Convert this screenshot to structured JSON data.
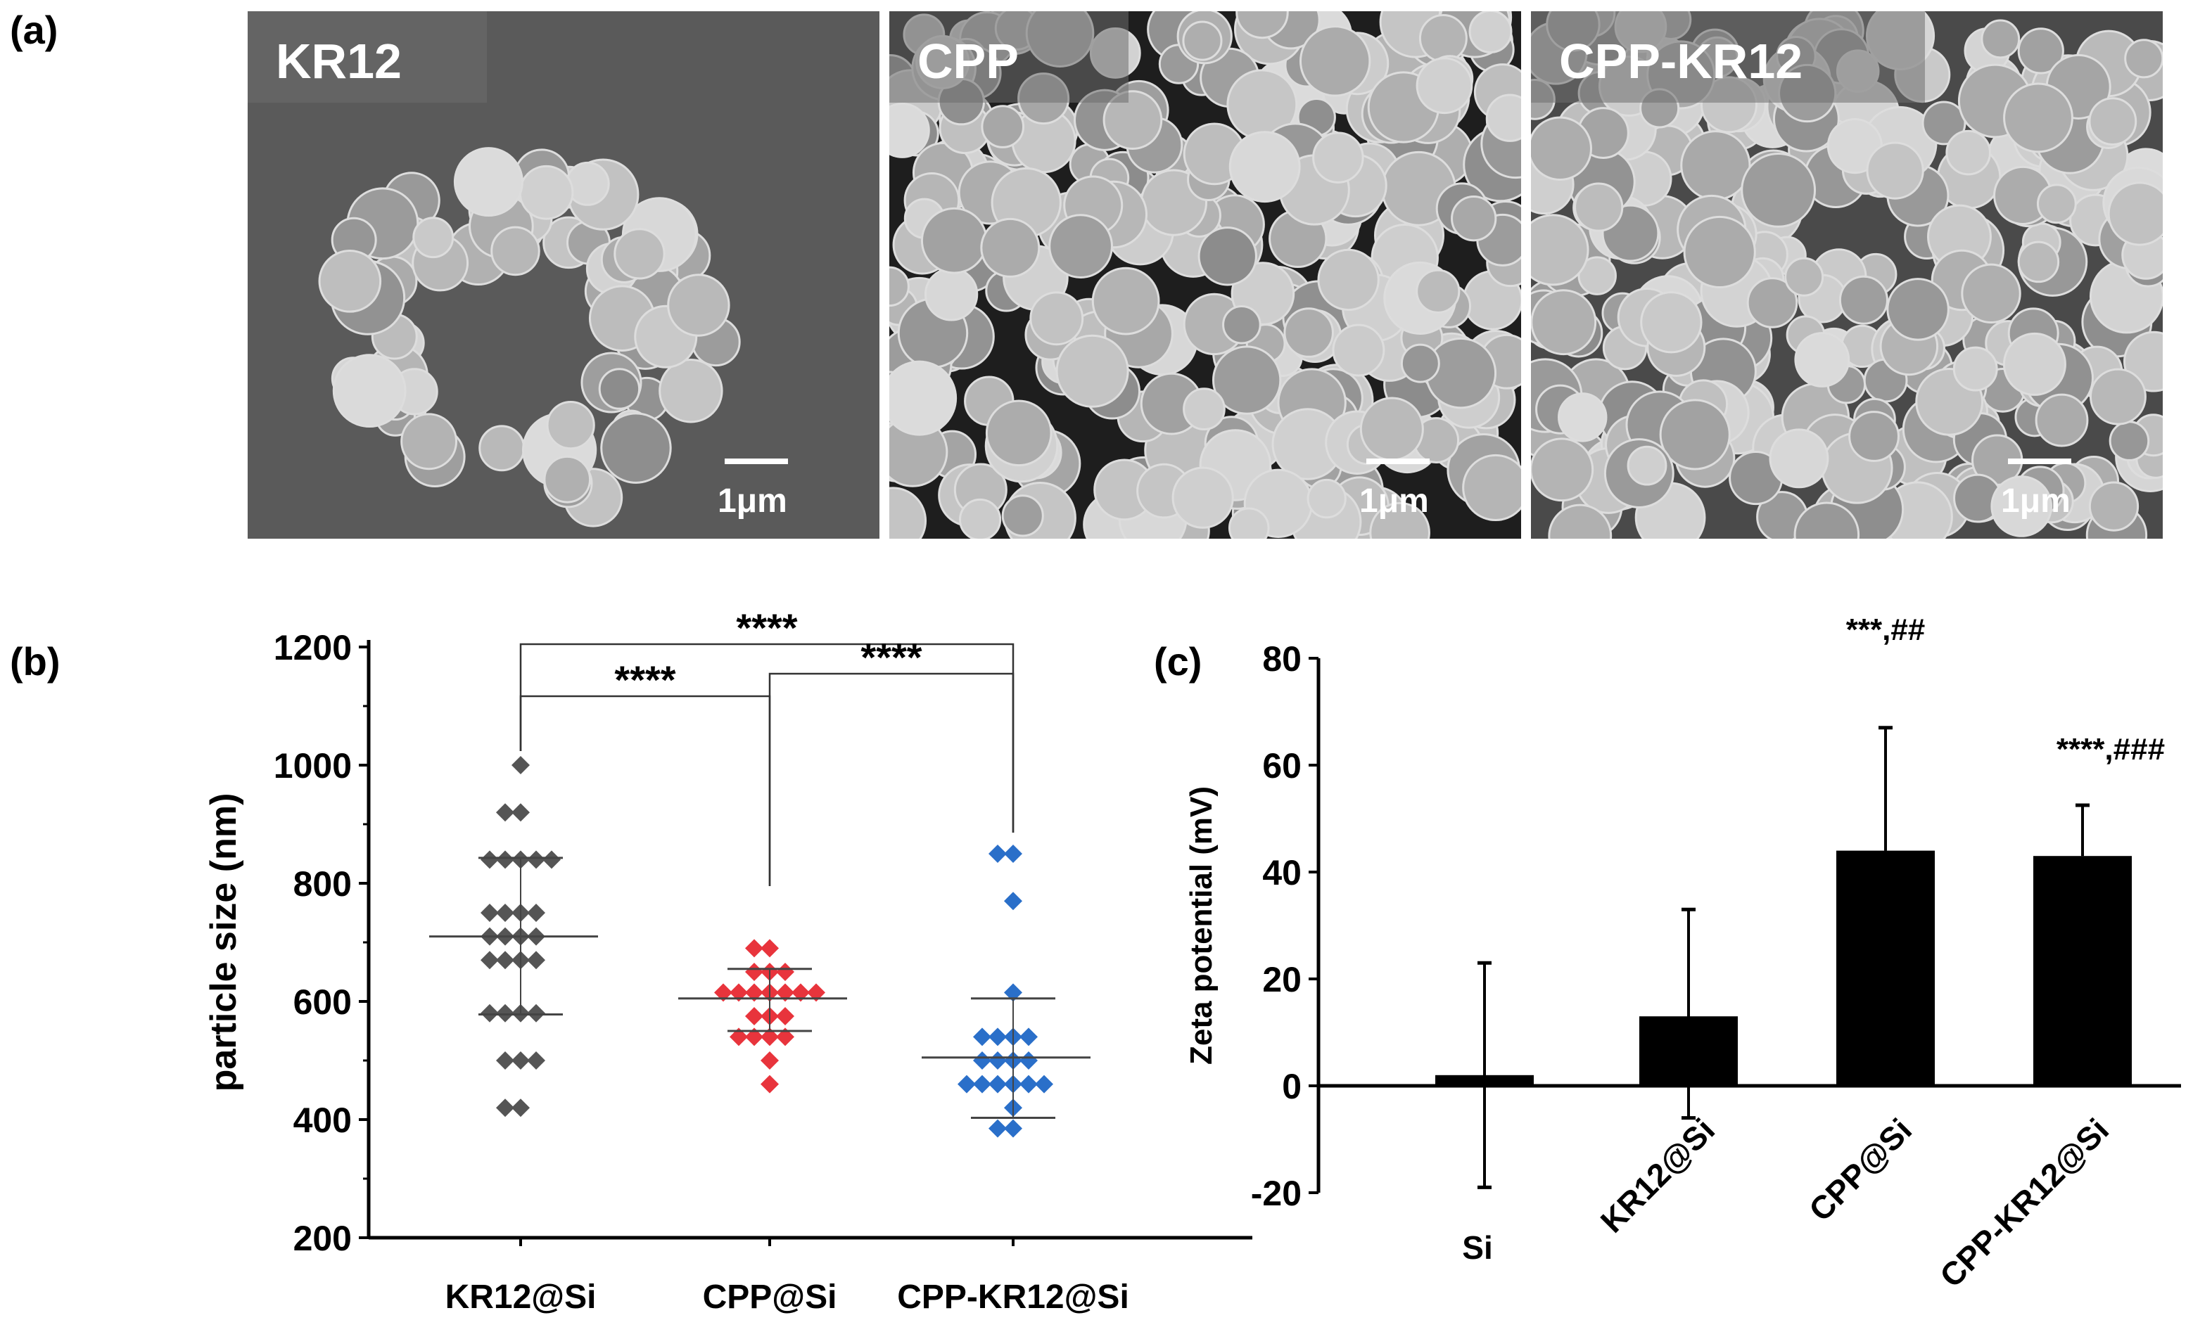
{
  "panel_labels": {
    "a": "(a)",
    "b": "(b)",
    "c": "(c)"
  },
  "sem_images": [
    {
      "label": "KR12",
      "scale_bar": "1μm",
      "background": "#5a5a5a"
    },
    {
      "label": "CPP",
      "scale_bar": "1μm",
      "background": "#1e1e1e"
    },
    {
      "label": "CPP-KR12",
      "scale_bar": "1μm",
      "background": "#4a4a4a"
    }
  ],
  "chart_data": [
    {
      "type": "scatter",
      "ylabel": "particle size (nm)",
      "xlabel": "",
      "ylim": [
        200,
        1200
      ],
      "yticks": [
        "200",
        "400",
        "600",
        "800",
        "1000",
        "1200"
      ],
      "categories": [
        "KR12@Si",
        "CPP@Si",
        "CPP-KR12@Si"
      ],
      "series": [
        {
          "color": "#555555",
          "mean": 710,
          "sd_upper": 843,
          "sd_lower": 578,
          "values": [
            1000,
            920,
            920,
            840,
            840,
            840,
            840,
            840,
            750,
            750,
            750,
            750,
            710,
            710,
            710,
            710,
            670,
            670,
            670,
            670,
            580,
            580,
            580,
            580,
            500,
            500,
            500,
            420,
            420
          ]
        },
        {
          "color": "#e8343c",
          "mean": 605,
          "sd_upper": 655,
          "sd_lower": 550,
          "values": [
            690,
            690,
            650,
            650,
            650,
            615,
            615,
            615,
            615,
            615,
            615,
            615,
            575,
            575,
            575,
            540,
            540,
            540,
            540,
            500,
            460
          ]
        },
        {
          "color": "#2a6fc9",
          "mean": 505,
          "sd_upper": 605,
          "sd_lower": 403,
          "values": [
            850,
            850,
            770,
            615,
            540,
            540,
            540,
            540,
            500,
            500,
            500,
            500,
            460,
            460,
            460,
            460,
            460,
            460,
            420,
            385,
            385
          ]
        }
      ],
      "significance": [
        {
          "from": "KR12@Si",
          "to": "CPP-KR12@Si",
          "label": "****"
        },
        {
          "from": "KR12@Si",
          "to": "CPP@Si",
          "label": "****"
        },
        {
          "from": "CPP@Si",
          "to": "CPP-KR12@Si",
          "label": "****"
        }
      ]
    },
    {
      "type": "bar",
      "ylabel": "Zeta potential (mV)",
      "xlabel": "",
      "ylim": [
        -20,
        80
      ],
      "yticks": [
        "-20",
        "0",
        "20",
        "40",
        "60",
        "80"
      ],
      "categories": [
        "Si",
        "KR12@Si",
        "CPP@Si",
        "CPP-KR12@Si"
      ],
      "values": [
        2,
        13,
        44,
        43
      ],
      "error_upper": [
        23,
        33,
        67,
        52.5
      ],
      "error_lower": [
        -19,
        -6,
        null,
        null
      ],
      "annotations": [
        "",
        "",
        "***,##",
        "****,###"
      ],
      "bar_color": "#000000"
    }
  ]
}
